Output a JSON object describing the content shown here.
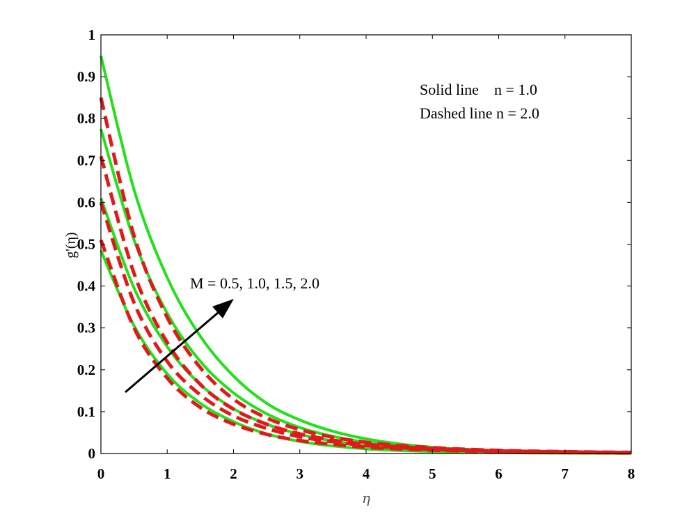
{
  "chart_data": {
    "type": "line",
    "title": "",
    "xlabel": "η",
    "ylabel": "g'(η)",
    "xlim": [
      0,
      8
    ],
    "ylim": [
      0,
      1
    ],
    "xticks": [
      "0",
      "1",
      "2",
      "3",
      "4",
      "5",
      "6",
      "7",
      "8"
    ],
    "yticks": [
      "0",
      "0.1",
      "0.2",
      "0.3",
      "0.4",
      "0.5",
      "0.6",
      "0.7",
      "0.8",
      "0.9",
      "1"
    ],
    "grid": false,
    "colors": {
      "solid": "#22e01a",
      "dashed": "#e01a1a",
      "axis": "#000000",
      "arrow": "#000000"
    },
    "annotations": {
      "legend_line1": "Solid line    n = 1.0",
      "legend_line2": "Dashed line n = 2.0",
      "arrow_text": "M = 0.5, 1.0, 1.5, 2.0"
    },
    "series": [
      {
        "style": "solid",
        "x": [
          0,
          0.5,
          1,
          1.5,
          2,
          2.5,
          3,
          3.5,
          4,
          4.5,
          5,
          5.5,
          6,
          6.5,
          7,
          7.5,
          8
        ],
        "y": [
          0.485,
          0.305,
          0.19,
          0.12,
          0.076,
          0.047,
          0.029,
          0.018,
          0.011,
          0.007,
          0.0045,
          0.003,
          0.002,
          0.0013,
          0.0009,
          0.0006,
          0.0004
        ]
      },
      {
        "style": "solid",
        "x": [
          0,
          0.5,
          1,
          1.5,
          2,
          2.5,
          3,
          3.5,
          4,
          4.5,
          5,
          5.5,
          6,
          6.5,
          7,
          7.5,
          8
        ],
        "y": [
          0.61,
          0.395,
          0.255,
          0.165,
          0.107,
          0.07,
          0.046,
          0.03,
          0.019,
          0.012,
          0.008,
          0.005,
          0.0033,
          0.0022,
          0.0014,
          0.0009,
          0.0006
        ]
      },
      {
        "style": "solid",
        "x": [
          0,
          0.5,
          1,
          1.5,
          2,
          2.5,
          3,
          3.5,
          4,
          4.5,
          5,
          5.5,
          6,
          6.5,
          7,
          7.5,
          8
        ],
        "y": [
          0.775,
          0.51,
          0.335,
          0.22,
          0.145,
          0.095,
          0.062,
          0.041,
          0.027,
          0.018,
          0.011,
          0.0075,
          0.005,
          0.0033,
          0.0021,
          0.0014,
          0.0009
        ]
      },
      {
        "style": "solid",
        "x": [
          0,
          0.5,
          1,
          1.5,
          2,
          2.5,
          3,
          3.5,
          4,
          4.5,
          5,
          5.5,
          6,
          6.5,
          7,
          7.5,
          8
        ],
        "y": [
          0.95,
          0.63,
          0.42,
          0.28,
          0.185,
          0.12,
          0.08,
          0.053,
          0.035,
          0.023,
          0.015,
          0.01,
          0.0065,
          0.0043,
          0.0028,
          0.0019,
          0.0012
        ]
      },
      {
        "style": "dashed",
        "x": [
          0,
          0.5,
          1,
          1.5,
          2,
          2.5,
          3,
          3.5,
          4,
          4.5,
          5,
          5.5,
          6,
          6.5,
          7,
          7.5,
          8
        ],
        "y": [
          0.51,
          0.3,
          0.18,
          0.11,
          0.07,
          0.046,
          0.031,
          0.022,
          0.015,
          0.011,
          0.008,
          0.006,
          0.0045,
          0.0035,
          0.0027,
          0.0021,
          0.0016
        ]
      },
      {
        "style": "dashed",
        "x": [
          0,
          0.5,
          1,
          1.5,
          2,
          2.5,
          3,
          3.5,
          4,
          4.5,
          5,
          5.5,
          6,
          6.5,
          7,
          7.5,
          8
        ],
        "y": [
          0.6,
          0.36,
          0.22,
          0.14,
          0.09,
          0.06,
          0.04,
          0.028,
          0.019,
          0.014,
          0.01,
          0.0075,
          0.0056,
          0.0043,
          0.0033,
          0.0026,
          0.002
        ]
      },
      {
        "style": "dashed",
        "x": [
          0,
          0.5,
          1,
          1.5,
          2,
          2.5,
          3,
          3.5,
          4,
          4.5,
          5,
          5.5,
          6,
          6.5,
          7,
          7.5,
          8
        ],
        "y": [
          0.71,
          0.43,
          0.265,
          0.165,
          0.106,
          0.07,
          0.047,
          0.032,
          0.022,
          0.016,
          0.0115,
          0.0085,
          0.0063,
          0.0048,
          0.0037,
          0.0029,
          0.0022
        ]
      },
      {
        "style": "dashed",
        "x": [
          0,
          0.5,
          1,
          1.5,
          2,
          2.5,
          3,
          3.5,
          4,
          4.5,
          5,
          5.5,
          6,
          6.5,
          7,
          7.5,
          8
        ],
        "y": [
          0.85,
          0.52,
          0.325,
          0.205,
          0.13,
          0.085,
          0.057,
          0.039,
          0.027,
          0.019,
          0.014,
          0.01,
          0.0075,
          0.0057,
          0.0044,
          0.0034,
          0.0026
        ]
      }
    ]
  }
}
